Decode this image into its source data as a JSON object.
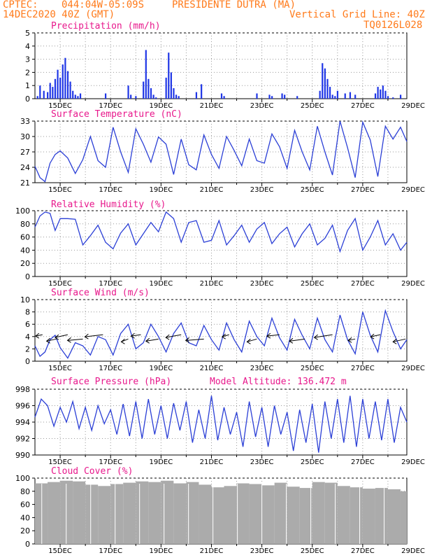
{
  "header": {
    "source": "CPTEC:",
    "coords": "044:04W-05:09S",
    "station": "PRESIDENTE DUTRA (MA)",
    "date": "14DEC2020 40Z (GMT)",
    "grid_line": "Vertical Grid Line: 40Z",
    "run": "TQ0126L028"
  },
  "model_altitude": "Model Altitude: 136.472 m",
  "colors": {
    "header": "#ff7a1a",
    "title": "#e8188c",
    "line": "#2b3fd6",
    "cloud": "#ababab",
    "bars": "#1f36e6"
  },
  "x_tick_labels": [
    "15DEC",
    "17DEC",
    "19DEC",
    "21DEC",
    "23DEC",
    "25DEC",
    "27DEC",
    "29DEC"
  ],
  "chart_data": [
    {
      "type": "bar",
      "title": "Precipitation (mm/h)",
      "ylim": [
        0,
        5
      ],
      "yticks": [
        0,
        1,
        2,
        3,
        4,
        5
      ],
      "grid": true,
      "x_unit": "days since 14DEC2020 00Z",
      "x": [
        0.1,
        0.2,
        0.35,
        0.5,
        0.6,
        0.7,
        0.8,
        0.9,
        1.0,
        1.1,
        1.2,
        1.3,
        1.4,
        1.5,
        1.6,
        1.7,
        1.8,
        2.8,
        3.7,
        3.8,
        4.0,
        4.3,
        4.4,
        4.5,
        4.6,
        4.7,
        4.8,
        5.2,
        5.3,
        5.4,
        5.5,
        5.6,
        5.7,
        6.4,
        6.6,
        7.4,
        7.5,
        8.8,
        9.3,
        9.4,
        9.8,
        9.9,
        10.4,
        11.3,
        11.4,
        11.5,
        11.6,
        11.7,
        11.8,
        11.9,
        12.0,
        12.3,
        12.5,
        12.7,
        13.5,
        13.6,
        13.7,
        13.8,
        13.9,
        14.0,
        14.2,
        14.5
      ],
      "values": [
        0.2,
        1.0,
        0.6,
        0.5,
        1.2,
        0.9,
        1.5,
        2.2,
        1.6,
        2.6,
        3.1,
        2.1,
        1.3,
        0.6,
        0.3,
        0.2,
        0.4,
        0.4,
        1.0,
        0.3,
        0.2,
        1.3,
        3.7,
        1.5,
        0.8,
        0.3,
        0.1,
        1.6,
        3.5,
        2.0,
        0.8,
        0.3,
        0.2,
        0.5,
        1.1,
        0.4,
        0.2,
        0.4,
        0.3,
        0.2,
        0.4,
        0.3,
        0.2,
        0.6,
        2.7,
        2.3,
        1.5,
        0.9,
        0.3,
        0.2,
        0.6,
        0.4,
        0.5,
        0.3,
        0.4,
        0.9,
        0.7,
        1.0,
        0.6,
        0.2,
        0.1,
        0.3
      ]
    },
    {
      "type": "line",
      "title": "Surface Temperature (nC)",
      "ylim": [
        21,
        33
      ],
      "yticks": [
        21,
        24,
        27,
        30,
        33
      ],
      "grid": true,
      "x_unit": "days since 14DEC2020 00Z",
      "series": [
        {
          "x": [
            0.0,
            0.2,
            0.4,
            0.6,
            0.8,
            1.0,
            1.3,
            1.6,
            1.9,
            2.2,
            2.5,
            2.8,
            3.1,
            3.4,
            3.7,
            4.0,
            4.3,
            4.6,
            4.9,
            5.2,
            5.5,
            5.8,
            6.1,
            6.4,
            6.7,
            7.0,
            7.3,
            7.6,
            7.9,
            8.2,
            8.5,
            8.8,
            9.1,
            9.4,
            9.7,
            10.0,
            10.3,
            10.6,
            10.9,
            11.2,
            11.5,
            11.8,
            12.1,
            12.4,
            12.7,
            13.0,
            13.3,
            13.6,
            13.9,
            14.2,
            14.5,
            14.75
          ],
          "values": [
            24.2,
            22.0,
            21.2,
            24.8,
            26.5,
            27.2,
            25.8,
            22.8,
            25.5,
            30.0,
            25.3,
            24.0,
            31.8,
            27.0,
            23.0,
            31.5,
            28.5,
            25.0,
            29.9,
            28.5,
            22.6,
            29.5,
            24.5,
            23.5,
            30.3,
            26.5,
            23.8,
            30.0,
            27.3,
            24.3,
            29.5,
            25.3,
            24.8,
            30.5,
            28.0,
            23.8,
            31.2,
            27.0,
            23.5,
            32.0,
            27.0,
            22.5,
            33.0,
            27.8,
            22.0,
            32.8,
            29.3,
            22.2,
            32.0,
            29.5,
            31.8,
            29.0
          ]
        }
      ]
    },
    {
      "type": "line",
      "title": "Relative Humidity (%)",
      "ylim": [
        0,
        100
      ],
      "yticks": [
        0,
        20,
        40,
        60,
        80,
        100
      ],
      "grid": true,
      "x_unit": "days since 14DEC2020 00Z",
      "series": [
        {
          "x": [
            0.0,
            0.2,
            0.4,
            0.6,
            0.8,
            1.0,
            1.3,
            1.6,
            1.9,
            2.2,
            2.5,
            2.8,
            3.1,
            3.4,
            3.7,
            4.0,
            4.3,
            4.6,
            4.9,
            5.2,
            5.5,
            5.8,
            6.1,
            6.4,
            6.7,
            7.0,
            7.3,
            7.6,
            7.9,
            8.2,
            8.5,
            8.8,
            9.1,
            9.4,
            9.7,
            10.0,
            10.3,
            10.6,
            10.9,
            11.2,
            11.5,
            11.8,
            12.1,
            12.4,
            12.7,
            13.0,
            13.3,
            13.6,
            13.9,
            14.2,
            14.5,
            14.75
          ],
          "values": [
            75,
            92,
            98,
            96,
            70,
            88,
            88,
            87,
            48,
            62,
            78,
            52,
            42,
            66,
            80,
            48,
            65,
            82,
            68,
            98,
            88,
            52,
            82,
            85,
            52,
            55,
            85,
            48,
            62,
            78,
            52,
            72,
            82,
            50,
            65,
            75,
            45,
            65,
            80,
            48,
            58,
            78,
            38,
            70,
            88,
            40,
            60,
            85,
            48,
            65,
            40,
            52
          ]
        }
      ]
    },
    {
      "type": "line",
      "title": "Surface Wind (m/s)",
      "ylim": [
        0,
        10
      ],
      "yticks": [
        0,
        2,
        4,
        6,
        8,
        10
      ],
      "grid": true,
      "x_unit": "days since 14DEC2020 00Z",
      "series": [
        {
          "x": [
            0.0,
            0.2,
            0.4,
            0.6,
            0.8,
            1.0,
            1.3,
            1.6,
            1.9,
            2.2,
            2.5,
            2.8,
            3.1,
            3.4,
            3.7,
            4.0,
            4.3,
            4.6,
            4.9,
            5.2,
            5.5,
            5.8,
            6.1,
            6.4,
            6.7,
            7.0,
            7.3,
            7.6,
            7.9,
            8.2,
            8.5,
            8.8,
            9.1,
            9.4,
            9.7,
            10.0,
            10.3,
            10.6,
            10.9,
            11.2,
            11.5,
            11.8,
            12.1,
            12.4,
            12.7,
            13.0,
            13.3,
            13.6,
            13.9,
            14.2,
            14.5,
            14.75
          ],
          "values": [
            2.5,
            0.8,
            1.5,
            3.5,
            4.2,
            2.2,
            0.5,
            3.0,
            2.5,
            1.0,
            4.0,
            3.5,
            1.0,
            4.5,
            6.0,
            2.0,
            3.0,
            6.0,
            4.0,
            1.5,
            4.5,
            6.2,
            3.0,
            2.5,
            5.8,
            3.5,
            1.8,
            6.2,
            3.5,
            1.5,
            6.5,
            4.0,
            2.5,
            7.0,
            3.8,
            1.8,
            6.8,
            4.2,
            2.0,
            7.0,
            3.5,
            1.5,
            7.5,
            3.5,
            1.2,
            8.0,
            4.2,
            1.5,
            8.2,
            4.8,
            2.0,
            3.5
          ]
        }
      ],
      "wind_arrow_days": [
        0.3,
        0.85,
        1.3,
        1.9,
        2.7,
        3.7,
        4.2,
        4.9,
        5.8,
        6.7,
        7.7,
        8.8,
        9.7,
        10.7,
        11.8,
        12.7,
        13.7,
        14.7
      ]
    },
    {
      "type": "line",
      "title": "Surface Pressure (hPa)",
      "ylim": [
        990,
        998
      ],
      "yticks": [
        990,
        992,
        994,
        996,
        998
      ],
      "grid": true,
      "x_unit": "days since 14DEC2020 00Z",
      "series": [
        {
          "x": [
            0.0,
            0.25,
            0.5,
            0.75,
            1.0,
            1.25,
            1.5,
            1.75,
            2.0,
            2.25,
            2.5,
            2.75,
            3.0,
            3.25,
            3.5,
            3.75,
            4.0,
            4.25,
            4.5,
            4.75,
            5.0,
            5.25,
            5.5,
            5.75,
            6.0,
            6.25,
            6.5,
            6.75,
            7.0,
            7.25,
            7.5,
            7.75,
            8.0,
            8.25,
            8.5,
            8.75,
            9.0,
            9.25,
            9.5,
            9.75,
            10.0,
            10.25,
            10.5,
            10.75,
            11.0,
            11.25,
            11.5,
            11.75,
            12.0,
            12.25,
            12.5,
            12.75,
            13.0,
            13.25,
            13.5,
            13.75,
            14.0,
            14.25,
            14.5,
            14.75
          ],
          "values": [
            994.6,
            996.8,
            996.0,
            993.5,
            995.8,
            994.0,
            996.5,
            993.2,
            995.8,
            993.0,
            996.0,
            993.8,
            995.5,
            992.5,
            996.2,
            992.3,
            996.5,
            992.0,
            996.8,
            992.5,
            996.0,
            992.0,
            996.3,
            993.0,
            996.5,
            991.5,
            995.5,
            992.0,
            997.2,
            991.8,
            995.8,
            992.5,
            995.2,
            991.0,
            996.5,
            992.2,
            995.8,
            991.0,
            996.0,
            992.5,
            995.2,
            990.5,
            995.5,
            991.5,
            996.2,
            990.3,
            996.5,
            992.0,
            996.8,
            991.5,
            997.2,
            991.0,
            996.8,
            992.0,
            996.5,
            991.8,
            996.8,
            991.5,
            995.8,
            994.0
          ]
        }
      ]
    },
    {
      "type": "bar",
      "title": "Cloud Cover (%)",
      "ylim": [
        0,
        100
      ],
      "yticks": [
        0,
        20,
        40,
        60,
        80,
        100
      ],
      "grid": true,
      "x_unit": "days since 14DEC2020 00Z",
      "x": [
        0.0,
        0.5,
        1.0,
        1.5,
        2.0,
        2.5,
        3.0,
        3.5,
        4.0,
        4.5,
        5.0,
        5.5,
        6.0,
        6.5,
        7.0,
        7.5,
        8.0,
        8.5,
        9.0,
        9.5,
        10.0,
        10.5,
        11.0,
        11.5,
        12.0,
        12.5,
        13.0,
        13.5,
        14.0,
        14.5
      ],
      "values": [
        92,
        94,
        96,
        95,
        90,
        88,
        91,
        93,
        95,
        94,
        96,
        92,
        94,
        90,
        86,
        88,
        92,
        91,
        89,
        93,
        87,
        85,
        94,
        93,
        88,
        86,
        84,
        85,
        83,
        80
      ]
    }
  ]
}
